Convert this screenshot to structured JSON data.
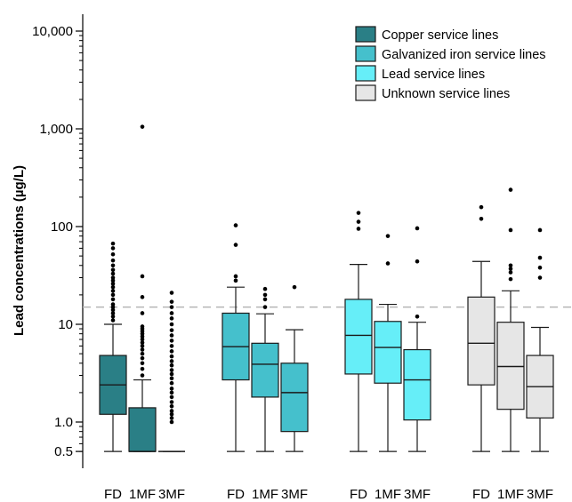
{
  "chart_data": {
    "type": "boxplot",
    "ylabel": "Lead concentrations (µg/L)",
    "yscale": "log",
    "ylim": [
      0.4,
      10000
    ],
    "y_ticks": [
      {
        "value": 10000,
        "label": "10,000"
      },
      {
        "value": 1000,
        "label": "1,000"
      },
      {
        "value": 100,
        "label": "100"
      },
      {
        "value": 10,
        "label": "10"
      },
      {
        "value": 1,
        "label": "1.0"
      },
      {
        "value": 0.5,
        "label": "0.5"
      }
    ],
    "reference_line": {
      "value": 15
    },
    "groups": [
      {
        "name": "Copper service lines",
        "color": "#2a7f86",
        "boxes": [
          {
            "category": "FD",
            "whisker_low": 0.5,
            "q1": 1.2,
            "median": 2.4,
            "q3": 4.8,
            "whisker_high": 10,
            "outliers": [
              11,
              12,
              13,
              14,
              15,
              16,
              18,
              20,
              22,
              24,
              26,
              28,
              30,
              33,
              36,
              40,
              45,
              52,
              60,
              67
            ]
          },
          {
            "category": "1MF",
            "whisker_low": 0.5,
            "q1": 0.5,
            "median": 0.5,
            "q3": 1.4,
            "whisker_high": 2.7,
            "outliers": [
              3.0,
              3.5,
              4.0,
              4.5,
              5.0,
              5.5,
              6.0,
              6.5,
              7.0,
              7.5,
              8.0,
              8.5,
              9.0,
              9.5,
              13,
              19,
              31,
              1050
            ]
          },
          {
            "category": "3MF",
            "whisker_low": 0.5,
            "q1": 0.5,
            "median": 0.5,
            "q3": 0.5,
            "whisker_high": 0.5,
            "outliers": [
              1.0,
              1.1,
              1.2,
              1.3,
              1.45,
              1.6,
              1.8,
              2.0,
              2.2,
              2.5,
              2.8,
              3.1,
              3.4,
              3.8,
              4.2,
              4.7,
              5.3,
              6.0,
              6.8,
              7.7,
              8.7,
              10,
              11.5,
              13,
              15,
              17,
              21
            ]
          }
        ]
      },
      {
        "name": "Galvanized iron service lines",
        "color": "#45c0cc",
        "boxes": [
          {
            "category": "FD",
            "whisker_low": 0.5,
            "q1": 2.7,
            "median": 5.9,
            "q3": 13,
            "whisker_high": 24,
            "outliers": [
              28,
              31,
              65,
              103
            ]
          },
          {
            "category": "1MF",
            "whisker_low": 0.5,
            "q1": 1.8,
            "median": 3.9,
            "q3": 6.4,
            "whisker_high": 12.8,
            "outliers": [
              15,
              18,
              20,
              23
            ]
          },
          {
            "category": "3MF",
            "whisker_low": 0.5,
            "q1": 0.8,
            "median": 2.0,
            "q3": 4.0,
            "whisker_high": 8.8,
            "outliers": [
              24
            ]
          }
        ]
      },
      {
        "name": "Lead service lines",
        "color": "#66eef8",
        "boxes": [
          {
            "category": "FD",
            "whisker_low": 0.5,
            "q1": 3.1,
            "median": 7.7,
            "q3": 18,
            "whisker_high": 41,
            "outliers": [
              95,
              112,
              138
            ]
          },
          {
            "category": "1MF",
            "whisker_low": 0.5,
            "q1": 2.5,
            "median": 5.8,
            "q3": 10.7,
            "whisker_high": 16,
            "outliers": [
              42,
              80
            ]
          },
          {
            "category": "3MF",
            "whisker_low": 0.5,
            "q1": 1.05,
            "median": 2.7,
            "q3": 5.5,
            "whisker_high": 10.5,
            "outliers": [
              12,
              44,
              96
            ]
          }
        ]
      },
      {
        "name": "Unknown service lines",
        "color": "#e6e6e6",
        "boxes": [
          {
            "category": "FD",
            "whisker_low": 0.5,
            "q1": 2.4,
            "median": 6.4,
            "q3": 19,
            "whisker_high": 44,
            "outliers": [
              120,
              158
            ]
          },
          {
            "category": "1MF",
            "whisker_low": 0.5,
            "q1": 1.35,
            "median": 3.7,
            "q3": 10.5,
            "whisker_high": 22,
            "outliers": [
              29,
              34,
              37,
              40,
              92,
              238
            ]
          },
          {
            "category": "3MF",
            "whisker_low": 0.5,
            "q1": 1.1,
            "median": 2.3,
            "q3": 4.8,
            "whisker_high": 9.3,
            "outliers": [
              30,
              38,
              48,
              92
            ]
          }
        ]
      }
    ],
    "legend": {
      "position": "top-right"
    },
    "grid": false
  }
}
